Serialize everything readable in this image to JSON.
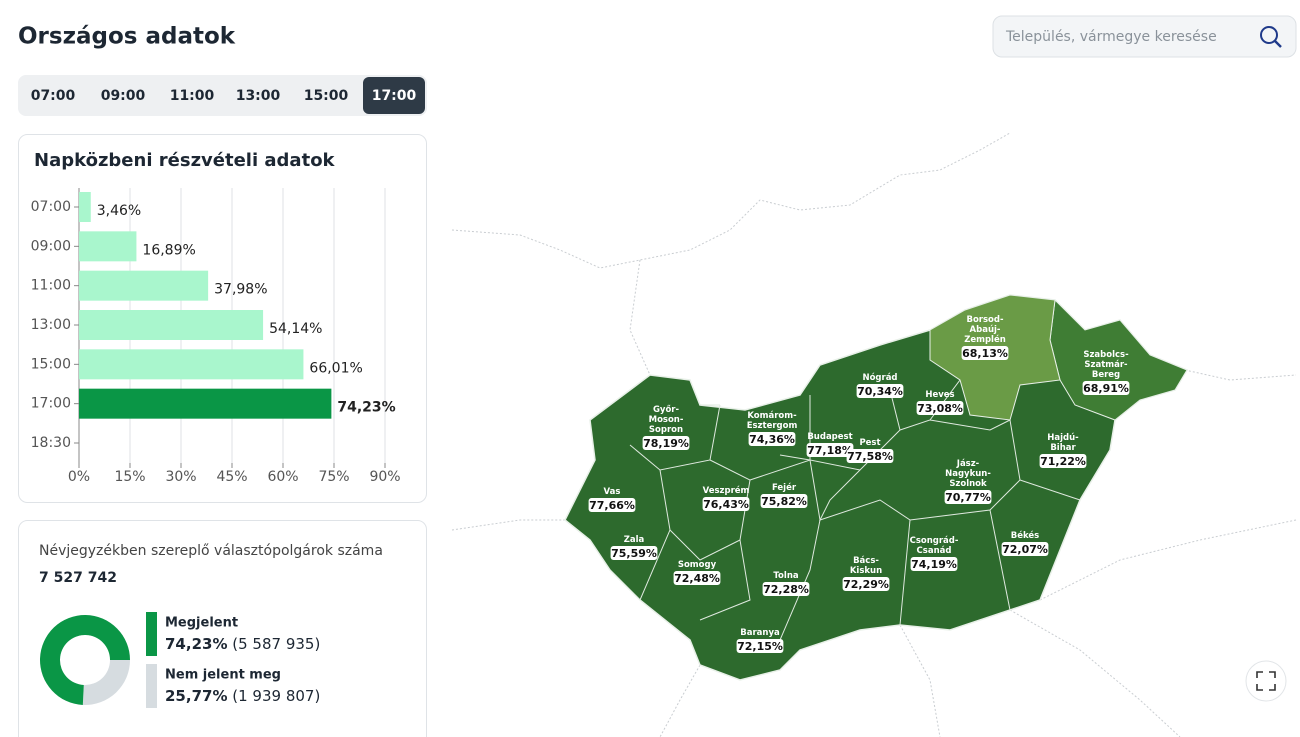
{
  "header": {
    "title": "Országos adatok",
    "search_placeholder": "Település, vármegye keresése"
  },
  "time_tabs": {
    "items": [
      "07:00",
      "09:00",
      "11:00",
      "13:00",
      "15:00",
      "17:00"
    ],
    "active": 5
  },
  "chart_data": [
    {
      "type": "bar",
      "orientation": "horizontal",
      "title": "Napközbeni részvételi adatok",
      "categories": [
        "07:00",
        "09:00",
        "11:00",
        "13:00",
        "15:00",
        "17:00",
        "18:30"
      ],
      "values": [
        3.46,
        16.89,
        37.98,
        54.14,
        66.01,
        74.23,
        null
      ],
      "value_labels": [
        "3,46%",
        "16,89%",
        "37,98%",
        "54,14%",
        "66,01%",
        "74,23%",
        null
      ],
      "colors": [
        "#a9f6cd",
        "#a9f6cd",
        "#a9f6cd",
        "#a9f6cd",
        "#a9f6cd",
        "#0a9646",
        "#a9f6cd"
      ],
      "xlim": [
        0,
        90
      ],
      "xticks": [
        {
          "value": 0,
          "label": "0%"
        },
        {
          "value": 15,
          "label": "15%"
        },
        {
          "value": 30,
          "label": "30%"
        },
        {
          "value": 45,
          "label": "45%"
        },
        {
          "value": 60,
          "label": "60%"
        },
        {
          "value": 75,
          "label": "75%"
        },
        {
          "value": 90,
          "label": "90%"
        }
      ],
      "grid": true
    },
    {
      "type": "pie",
      "donut": true,
      "title": "Névjegyzékben szereplő választópolgárok száma",
      "total_label": "7 527 742",
      "categories": [
        "Megjelent",
        "Nem jelent meg"
      ],
      "values": [
        74.23,
        25.77
      ],
      "value_labels": [
        "74,23%",
        "25,77%"
      ],
      "count_labels": [
        "(5 587 935)",
        "(1 939 807)"
      ],
      "colors": [
        "#0a9646",
        "#d6dce0"
      ]
    }
  ],
  "map": {
    "regions": [
      {
        "name": "Győr-Moson-Sopron",
        "value": "78,19%"
      },
      {
        "name": "Komárom-Esztergom",
        "value": "74,36%"
      },
      {
        "name": "Budapest",
        "value": "77,18%"
      },
      {
        "name": "Pest",
        "value": "77,58%"
      },
      {
        "name": "Nógrád",
        "value": "70,34%"
      },
      {
        "name": "Heves",
        "value": "73,08%"
      },
      {
        "name": "Borsod-Abaúj-Zemplén",
        "value": "68,13%"
      },
      {
        "name": "Szabolcs-Szatmár-Bereg",
        "value": "68,91%"
      },
      {
        "name": "Hajdú-Bihar",
        "value": "71,22%"
      },
      {
        "name": "Jász-Nagykun-Szolnok",
        "value": "70,77%"
      },
      {
        "name": "Vas",
        "value": "77,66%"
      },
      {
        "name": "Veszprém",
        "value": "76,43%"
      },
      {
        "name": "Fejér",
        "value": "75,82%"
      },
      {
        "name": "Zala",
        "value": "75,59%"
      },
      {
        "name": "Somogy",
        "value": "72,48%"
      },
      {
        "name": "Bács-Kiskun",
        "value": "72,29%"
      },
      {
        "name": "Csongrád-Csanád",
        "value": "74,19%"
      },
      {
        "name": "Békés",
        "value": "72,07%"
      },
      {
        "name": "Tolna",
        "value": "72,28%"
      },
      {
        "name": "Baranya",
        "value": "72,15%"
      }
    ]
  }
}
